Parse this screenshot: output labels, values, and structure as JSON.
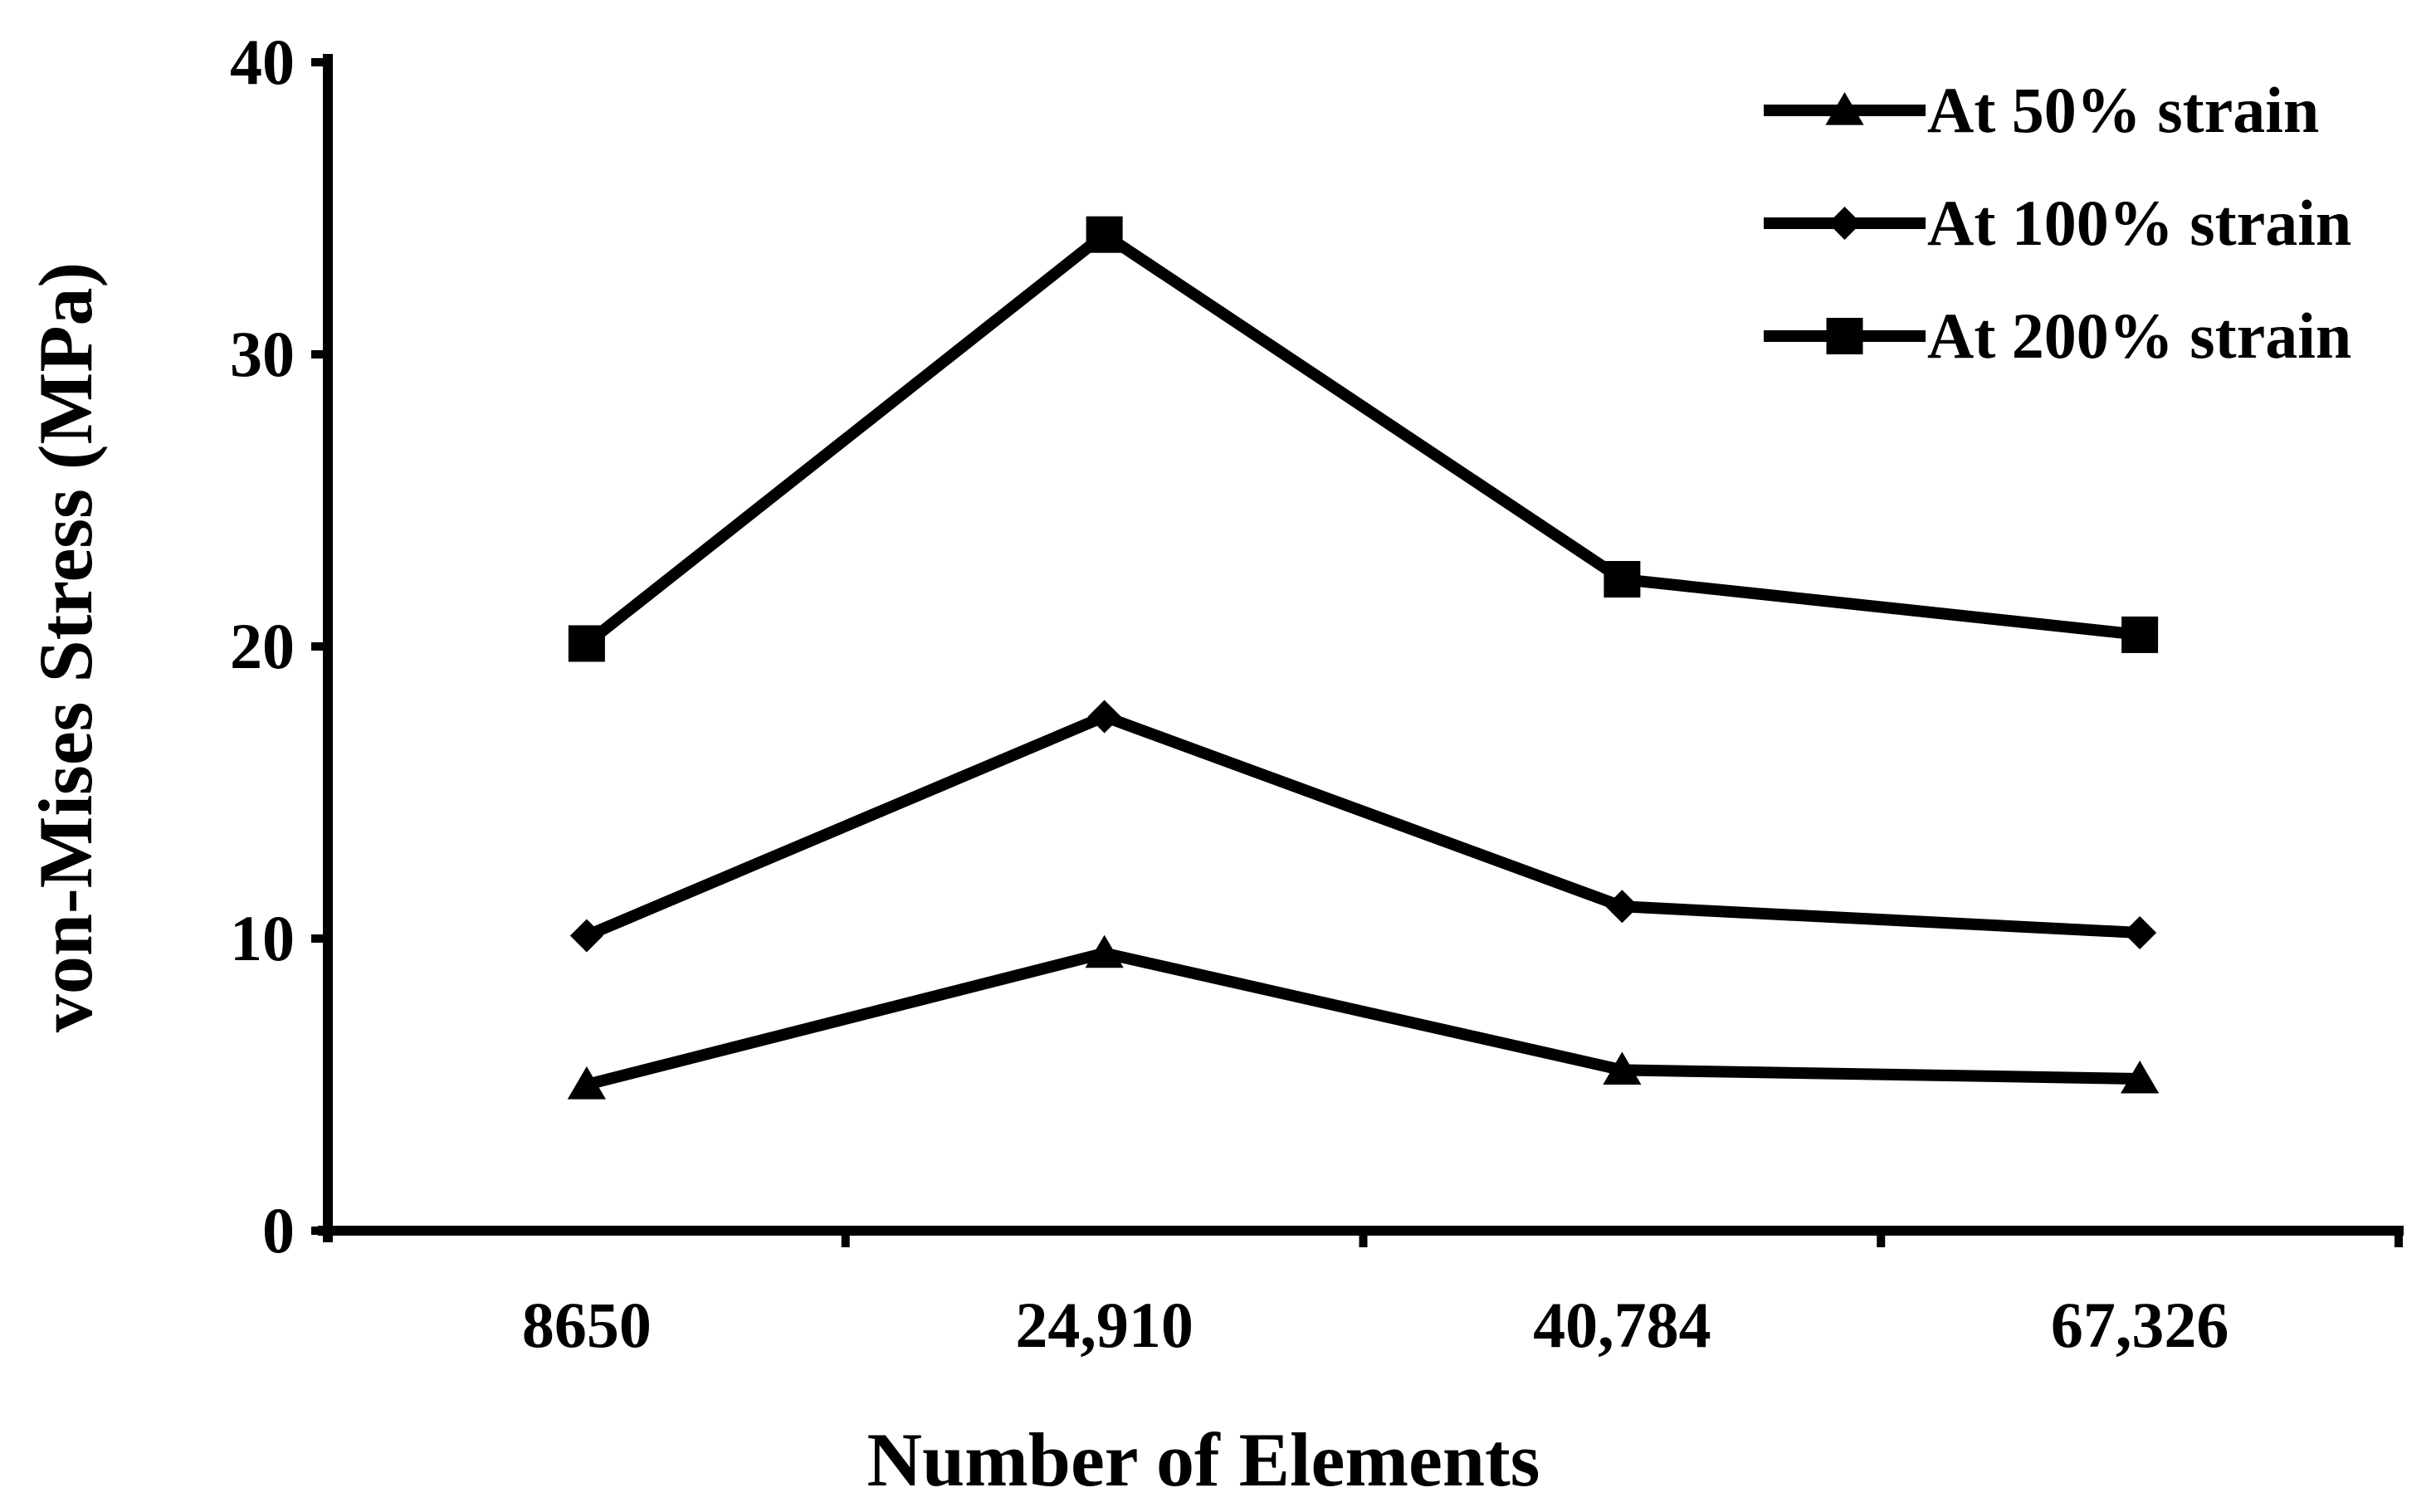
{
  "chart_data": {
    "type": "line",
    "title": "",
    "xlabel": "Number of Elements",
    "ylabel": "von-Mises Stress (MPa)",
    "categories": [
      "8650",
      "24,910",
      "40,784",
      "67,326"
    ],
    "ylim": [
      0,
      40
    ],
    "yticks": [
      "0",
      "10",
      "20",
      "30",
      "40"
    ],
    "grid": false,
    "legend_position": "top-right",
    "series": [
      {
        "name": "At 50% strain",
        "marker": "triangle",
        "values": [
          5.0,
          9.5,
          5.5,
          5.2
        ]
      },
      {
        "name": "At 100% strain",
        "marker": "diamond",
        "values": [
          10.1,
          17.6,
          11.1,
          10.2
        ]
      },
      {
        "name": "At 200% strain",
        "marker": "square",
        "values": [
          20.1,
          34.1,
          22.3,
          20.4
        ]
      }
    ],
    "colors": {
      "line": "#000000",
      "background": "#ffffff"
    }
  }
}
